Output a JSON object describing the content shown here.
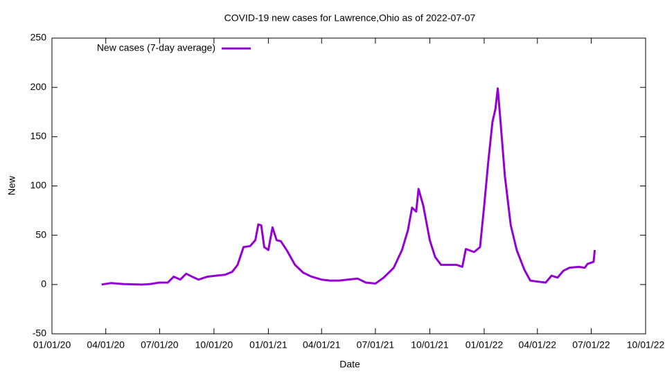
{
  "chart_data": {
    "type": "line",
    "title": "COVID-19 new cases for Lawrence,Ohio as of 2022-07-07",
    "x_label": "Date",
    "y_label": "New",
    "legend": "top-left",
    "x": [
      "2020-03-25",
      "2020-04-10",
      "2020-05-01",
      "2020-06-01",
      "2020-06-15",
      "2020-07-01",
      "2020-07-15",
      "2020-07-25",
      "2020-08-05",
      "2020-08-15",
      "2020-08-25",
      "2020-09-05",
      "2020-09-20",
      "2020-10-05",
      "2020-10-20",
      "2020-11-01",
      "2020-11-10",
      "2020-11-20",
      "2020-12-01",
      "2020-12-10",
      "2020-12-15",
      "2020-12-20",
      "2020-12-25",
      "2021-01-01",
      "2021-01-08",
      "2021-01-15",
      "2021-01-22",
      "2021-02-01",
      "2021-02-15",
      "2021-03-01",
      "2021-03-15",
      "2021-04-01",
      "2021-04-15",
      "2021-05-01",
      "2021-05-15",
      "2021-06-01",
      "2021-06-15",
      "2021-07-01",
      "2021-07-15",
      "2021-08-01",
      "2021-08-15",
      "2021-08-25",
      "2021-09-01",
      "2021-09-08",
      "2021-09-12",
      "2021-09-20",
      "2021-10-01",
      "2021-10-10",
      "2021-10-20",
      "2021-11-01",
      "2021-11-15",
      "2021-11-25",
      "2021-12-01",
      "2021-12-15",
      "2021-12-25",
      "2022-01-01",
      "2022-01-08",
      "2022-01-15",
      "2022-01-20",
      "2022-01-24",
      "2022-01-28",
      "2022-02-05",
      "2022-02-15",
      "2022-02-25",
      "2022-03-10",
      "2022-03-20",
      "2022-04-01",
      "2022-04-15",
      "2022-04-25",
      "2022-05-05",
      "2022-05-15",
      "2022-05-25",
      "2022-06-10",
      "2022-06-20",
      "2022-06-25",
      "2022-07-05",
      "2022-07-07"
    ],
    "series": [
      {
        "name": "New cases (7-day average)",
        "color": "#9400d3",
        "values": [
          0,
          1.5,
          0.5,
          0,
          0.5,
          2,
          2,
          8,
          5,
          11,
          8,
          5,
          8,
          9,
          10,
          13,
          20,
          38,
          39,
          45,
          61,
          60,
          38,
          35,
          58,
          45,
          44,
          35,
          20,
          12,
          8,
          5,
          4,
          4,
          5,
          6,
          2,
          1,
          7,
          17,
          35,
          55,
          78,
          74,
          97,
          80,
          45,
          28,
          20,
          20,
          20,
          18,
          36,
          33,
          38,
          80,
          125,
          165,
          178,
          199,
          170,
          110,
          60,
          35,
          15,
          4,
          3,
          2,
          9,
          7,
          14,
          17,
          18,
          17,
          21,
          23,
          35
        ]
      }
    ],
    "xlim": [
      "2020-01-01",
      "2022-10-01"
    ],
    "xticks": [
      {
        "value": "2020-01-01",
        "label": "01/01/20"
      },
      {
        "value": "2020-04-01",
        "label": "04/01/20"
      },
      {
        "value": "2020-07-01",
        "label": "07/01/20"
      },
      {
        "value": "2020-10-01",
        "label": "10/01/20"
      },
      {
        "value": "2021-01-01",
        "label": "01/01/21"
      },
      {
        "value": "2021-04-01",
        "label": "04/01/21"
      },
      {
        "value": "2021-07-01",
        "label": "07/01/21"
      },
      {
        "value": "2021-10-01",
        "label": "10/01/21"
      },
      {
        "value": "2022-01-01",
        "label": "01/01/22"
      },
      {
        "value": "2022-04-01",
        "label": "04/01/22"
      },
      {
        "value": "2022-07-01",
        "label": "07/01/22"
      },
      {
        "value": "2022-10-01",
        "label": "10/01/22"
      }
    ],
    "ylim": [
      -50,
      250
    ],
    "yticks": [
      -50,
      0,
      50,
      100,
      150,
      200,
      250
    ]
  }
}
